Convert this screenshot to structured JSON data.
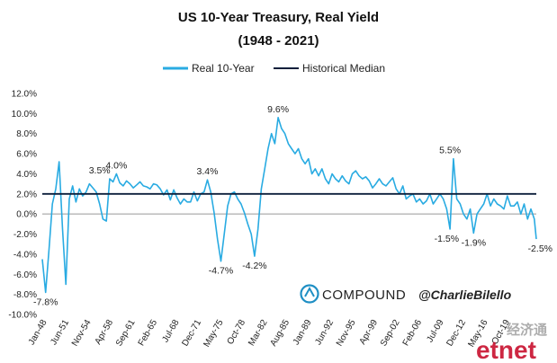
{
  "chart_data": {
    "type": "line",
    "title": "US 10-Year Treasury, Real Yield",
    "subtitle": "(1948 - 2021)",
    "xlabel": "",
    "ylabel": "",
    "ylim": [
      -10,
      12
    ],
    "y_ticks": [
      "12.0%",
      "10.0%",
      "8.0%",
      "6.0%",
      "4.0%",
      "2.0%",
      "0.0%",
      "-2.0%",
      "-4.0%",
      "-6.0%",
      "-8.0%",
      "-10.0%"
    ],
    "x_tick_labels": [
      "Jan-48",
      "Jun-51",
      "Nov-54",
      "Apr-58",
      "Sep-61",
      "Feb-65",
      "Jul-68",
      "Dec-71",
      "May-75",
      "Oct-78",
      "Mar-82",
      "Aug-85",
      "Jan-89",
      "Jun-92",
      "Nov-95",
      "Apr-99",
      "Sep-02",
      "Feb-06",
      "Jul-09",
      "Dec-12",
      "May-16",
      "Oct-19"
    ],
    "grid": false,
    "legend_position": "top",
    "series": [
      {
        "name": "Real 10-Year",
        "color": "#29abe2",
        "x": [
          1948.0,
          1948.5,
          1949.0,
          1949.5,
          1950.0,
          1950.5,
          1951.0,
          1951.5,
          1952.0,
          1952.5,
          1953.0,
          1953.5,
          1954.0,
          1954.5,
          1955.0,
          1955.5,
          1956.0,
          1956.5,
          1957.0,
          1957.5,
          1958.0,
          1958.5,
          1959.0,
          1959.5,
          1960.0,
          1960.5,
          1961.0,
          1961.5,
          1962.0,
          1962.5,
          1963.0,
          1963.5,
          1964.0,
          1964.5,
          1965.0,
          1965.5,
          1966.0,
          1966.5,
          1967.0,
          1967.5,
          1968.0,
          1968.5,
          1969.0,
          1969.5,
          1970.0,
          1970.5,
          1971.0,
          1971.5,
          1972.0,
          1972.5,
          1973.0,
          1973.5,
          1974.0,
          1974.5,
          1975.0,
          1975.5,
          1976.0,
          1976.5,
          1977.0,
          1977.5,
          1978.0,
          1978.5,
          1979.0,
          1979.5,
          1980.0,
          1980.5,
          1981.0,
          1981.5,
          1982.0,
          1982.5,
          1983.0,
          1983.5,
          1984.0,
          1984.5,
          1985.0,
          1985.5,
          1986.0,
          1986.5,
          1987.0,
          1987.5,
          1988.0,
          1988.5,
          1989.0,
          1989.5,
          1990.0,
          1990.5,
          1991.0,
          1991.5,
          1992.0,
          1992.5,
          1993.0,
          1993.5,
          1994.0,
          1994.5,
          1995.0,
          1995.5,
          1996.0,
          1996.5,
          1997.0,
          1997.5,
          1998.0,
          1998.5,
          1999.0,
          1999.5,
          2000.0,
          2000.5,
          2001.0,
          2001.5,
          2002.0,
          2002.5,
          2003.0,
          2003.5,
          2004.0,
          2004.5,
          2005.0,
          2005.5,
          2006.0,
          2006.5,
          2007.0,
          2007.5,
          2008.0,
          2008.5,
          2009.0,
          2009.5,
          2010.0,
          2010.5,
          2011.0,
          2011.5,
          2012.0,
          2012.5,
          2013.0,
          2013.5,
          2014.0,
          2014.5,
          2015.0,
          2015.5,
          2016.0,
          2016.5,
          2017.0,
          2017.5,
          2018.0,
          2018.5,
          2019.0,
          2019.5,
          2020.0,
          2020.5,
          2021.0,
          2021.3
        ],
        "values": [
          -4.5,
          -7.8,
          -3.5,
          1.0,
          2.5,
          5.2,
          -1.5,
          -7.0,
          1.5,
          2.8,
          1.2,
          2.5,
          1.8,
          2.2,
          3.0,
          2.6,
          2.2,
          1.0,
          -0.5,
          -0.7,
          3.5,
          3.2,
          4.0,
          3.1,
          2.8,
          3.3,
          3.0,
          2.6,
          2.9,
          3.2,
          2.8,
          2.7,
          2.5,
          3.0,
          2.9,
          2.5,
          1.9,
          2.4,
          1.4,
          2.4,
          1.6,
          1.0,
          1.5,
          1.2,
          1.2,
          2.2,
          1.3,
          2.0,
          2.2,
          3.4,
          2.2,
          0.1,
          -2.5,
          -4.7,
          -2.0,
          0.8,
          2.0,
          2.2,
          1.5,
          1.0,
          0.1,
          -1.0,
          -2.0,
          -4.2,
          -1.5,
          2.5,
          4.5,
          6.5,
          8.0,
          7.0,
          9.6,
          8.5,
          8.0,
          7.0,
          6.5,
          6.0,
          6.5,
          5.5,
          5.0,
          5.5,
          4.0,
          4.5,
          3.8,
          4.5,
          3.5,
          3.0,
          4.0,
          3.5,
          3.2,
          3.8,
          3.3,
          3.0,
          4.0,
          4.3,
          3.8,
          3.5,
          3.7,
          3.3,
          2.6,
          3.0,
          3.5,
          3.0,
          2.8,
          3.2,
          3.6,
          2.5,
          2.0,
          2.8,
          1.5,
          1.8,
          2.0,
          1.2,
          1.5,
          1.0,
          1.3,
          2.0,
          1.0,
          1.5,
          2.0,
          1.5,
          0.5,
          -1.5,
          5.5,
          1.5,
          1.0,
          0.0,
          -0.5,
          0.5,
          -1.9,
          0.0,
          0.5,
          1.0,
          2.0,
          0.8,
          1.5,
          1.0,
          0.8,
          0.5,
          1.8,
          0.8,
          0.8,
          1.2,
          0.0,
          1.0,
          -0.5,
          0.5,
          -0.5,
          -2.5
        ]
      },
      {
        "name": "Historical Median",
        "color": "#0b1e3a",
        "x": [
          1948.0,
          2021.3
        ],
        "values": [
          2.0,
          2.0
        ]
      }
    ],
    "annotations": [
      {
        "text": "-7.8%",
        "x": 1948.5,
        "y": -7.8
      },
      {
        "text": "3.5%",
        "x": 1956.5,
        "y": 3.5
      },
      {
        "text": "4.0%",
        "x": 1959.0,
        "y": 4.0
      },
      {
        "text": "3.4%",
        "x": 1972.5,
        "y": 3.4
      },
      {
        "text": "-4.7%",
        "x": 1974.5,
        "y": -4.7
      },
      {
        "text": "-4.2%",
        "x": 1979.5,
        "y": -4.2
      },
      {
        "text": "9.6%",
        "x": 1983.0,
        "y": 9.6
      },
      {
        "text": "5.5%",
        "x": 2008.5,
        "y": 5.5
      },
      {
        "text": "-1.5%",
        "x": 2008.0,
        "y": -1.5
      },
      {
        "text": "-1.9%",
        "x": 2012.0,
        "y": -1.9
      },
      {
        "text": "-2.5%",
        "x": 2021.3,
        "y": -2.5
      }
    ]
  },
  "branding": {
    "company": "COMPOUND",
    "handle": "@CharlieBilello",
    "watermark_cn": "经济通",
    "watermark_latin": "etnet"
  },
  "colors": {
    "series": "#29abe2",
    "median": "#0b1e3a",
    "brand_logo": "#1f8fc4",
    "watermark": "#c8102e"
  }
}
